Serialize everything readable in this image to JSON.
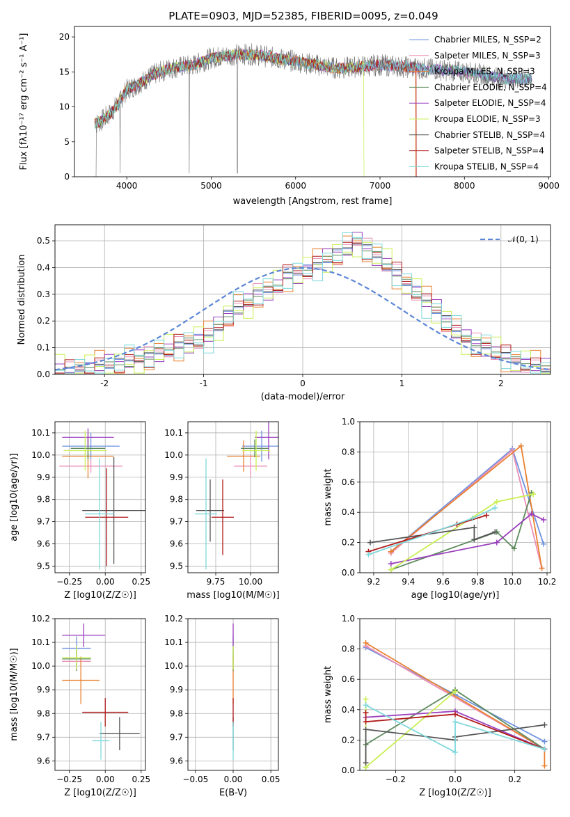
{
  "figure_title": "PLATE=0903, MJD=52385, FIBERID=0095, z=0.049",
  "colors": {
    "Chabrier MILES": "#6f93e0",
    "Salpeter MILES": "#ea8fb6",
    "Kroupa MILES": "#e9802f",
    "Chabrier ELODIE": "#5d8a5d",
    "Salpeter ELODIE": "#9a3fbd",
    "Kroupa ELODIE": "#c9ef53",
    "Chabrier STELIB": "#555555",
    "Salpeter STELIB": "#b01a1a",
    "Kroupa STELIB": "#7ed8dc",
    "normal": "#5b86d6"
  },
  "chart_data": [
    {
      "id": "spectrum",
      "type": "line",
      "xlabel": "wavelength [Angstrom, rest frame]",
      "ylabel": "Flux [fλ10⁻¹⁷ erg cm⁻² s⁻¹ A⁻¹]",
      "xlim": [
        3380,
        9020
      ],
      "ylim": [
        0,
        21.5
      ],
      "xticks": [
        4000,
        5000,
        6000,
        7000,
        8000,
        9000
      ],
      "yticks": [
        0,
        5,
        10,
        15,
        20
      ],
      "legend_position": "top-right",
      "legend": [
        "Chabrier MILES, N_SSP=2",
        "Salpeter MILES, N_SSP=3",
        "Kroupa MILES, N_SSP=3",
        "Chabrier ELODIE, N_SSP=4",
        "Salpeter ELODIE, N_SSP=4",
        "Kroupa ELODIE, N_SSP=3",
        "Chabrier STELIB, N_SSP=4",
        "Salpeter STELIB, N_SSP=4",
        "Kroupa STELIB, N_SSP=4"
      ],
      "continuum_x": [
        3620,
        3700,
        3800,
        3900,
        4000,
        4100,
        4300,
        4500,
        4800,
        5000,
        5300,
        5500,
        6000,
        6500,
        7000,
        7500,
        8000,
        8500,
        8800
      ],
      "continuum_y": [
        7.5,
        8.0,
        9.0,
        10.5,
        12.5,
        13.0,
        14.5,
        15.5,
        16.0,
        17.0,
        17.5,
        17.5,
        16.5,
        15.5,
        16.0,
        15.5,
        15.0,
        14.0,
        14.0
      ],
      "data_line": {
        "name": "data",
        "color": "#707070",
        "xrange": [
          3620,
          8800
        ]
      },
      "model_cutoffs_x": [
        8800,
        8800,
        7420,
        8800,
        8800,
        6810,
        8800,
        7430,
        8800
      ]
    },
    {
      "id": "residuals",
      "type": "step",
      "xlabel": "(data-model)/error",
      "ylabel": "Normed distribution",
      "xlim": [
        -2.5,
        2.5
      ],
      "ylim": [
        0,
        0.56
      ],
      "xticks": [
        -2,
        -1,
        0,
        1,
        2
      ],
      "yticks": [
        0.0,
        0.1,
        0.2,
        0.3,
        0.4,
        0.5
      ],
      "legend": [
        "𝒩(0, 1)"
      ],
      "legend_position": "top-right",
      "bin_width": 0.1,
      "bins_start": -2.5,
      "base_hist": [
        0.015,
        0.015,
        0.02,
        0.025,
        0.03,
        0.035,
        0.04,
        0.05,
        0.06,
        0.065,
        0.08,
        0.09,
        0.11,
        0.12,
        0.13,
        0.14,
        0.175,
        0.22,
        0.25,
        0.27,
        0.3,
        0.31,
        0.33,
        0.37,
        0.38,
        0.39,
        0.41,
        0.43,
        0.45,
        0.47,
        0.5,
        0.47,
        0.44,
        0.41,
        0.38,
        0.34,
        0.31,
        0.27,
        0.24,
        0.2,
        0.16,
        0.135,
        0.115,
        0.1,
        0.08,
        0.07,
        0.05,
        0.04,
        0.03,
        0.02
      ],
      "gaussian": {
        "mu": 0,
        "sigma": 1,
        "style": "dashed"
      }
    },
    {
      "id": "z_age",
      "type": "errorbar",
      "xlabel": "Z [log10(Z/Z☉)]",
      "ylabel": "age  [log10(age/yr)]",
      "xlim": [
        -0.35,
        0.28
      ],
      "ylim": [
        9.47,
        10.15
      ],
      "xticks": [
        -0.25,
        0.0,
        0.25
      ],
      "xtick_labels": [
        "−0.25",
        "0.00",
        "0.25"
      ],
      "yticks": [
        9.5,
        9.6,
        9.7,
        9.8,
        9.9,
        10.0,
        10.1
      ],
      "points": [
        {
          "model": "Chabrier MILES",
          "x": -0.1,
          "xerr": 0.2,
          "y": 10.04,
          "yerr": 0.06
        },
        {
          "model": "Salpeter MILES",
          "x": -0.1,
          "xerr": 0.22,
          "y": 9.95,
          "yerr": 0.03
        },
        {
          "model": "Kroupa MILES",
          "x": -0.12,
          "xerr": 0.18,
          "y": 9.995,
          "yerr": 0.1
        },
        {
          "model": "Chabrier ELODIE",
          "x": -0.12,
          "xerr": 0.12,
          "y": 10.03,
          "yerr": 0.05
        },
        {
          "model": "Salpeter ELODIE",
          "x": -0.12,
          "xerr": 0.18,
          "y": 10.08,
          "yerr": 0.04
        },
        {
          "model": "Kroupa ELODIE",
          "x": -0.14,
          "xerr": 0.15,
          "y": 10.02,
          "yerr": 0.09
        },
        {
          "model": "Chabrier STELIB",
          "x": 0.06,
          "xerr": 0.22,
          "y": 9.75,
          "yerr": 0.24
        },
        {
          "model": "Salpeter STELIB",
          "x": 0.01,
          "xerr": 0.15,
          "y": 9.72,
          "yerr": 0.22
        },
        {
          "model": "Kroupa STELIB",
          "x": -0.04,
          "xerr": 0.1,
          "y": 9.735,
          "yerr": 0.25
        }
      ]
    },
    {
      "id": "mass_age",
      "type": "errorbar",
      "xlabel": "mass [log10(M/M☉)]",
      "ylabel": "",
      "xlim": [
        9.55,
        10.2
      ],
      "ylim": [
        9.47,
        10.15
      ],
      "xticks": [
        9.75,
        10.0
      ],
      "xtick_labels": [
        "9.75",
        "10.00"
      ],
      "yticks": [
        9.5,
        9.6,
        9.7,
        9.8,
        9.9,
        10.0,
        10.1
      ],
      "points": [
        {
          "model": "Chabrier MILES",
          "x": 10.08,
          "xerr": 0.14,
          "y": 10.04,
          "yerr": 0.07
        },
        {
          "model": "Salpeter MILES",
          "x": 10.0,
          "xerr": 0.12,
          "y": 9.95,
          "yerr": 0.05
        },
        {
          "model": "Kroupa MILES",
          "x": 9.95,
          "xerr": 0.12,
          "y": 9.995,
          "yerr": 0.07
        },
        {
          "model": "Chabrier ELODIE",
          "x": 10.03,
          "xerr": 0.1,
          "y": 10.03,
          "yerr": 0.04
        },
        {
          "model": "Salpeter ELODIE",
          "x": 10.13,
          "xerr": 0.1,
          "y": 10.08,
          "yerr": 0.1
        },
        {
          "model": "Kroupa ELODIE",
          "x": 10.04,
          "xerr": 0.1,
          "y": 10.02,
          "yerr": 0.09
        },
        {
          "model": "Chabrier STELIB",
          "x": 9.71,
          "xerr": 0.1,
          "y": 9.75,
          "yerr": 0.14
        },
        {
          "model": "Salpeter STELIB",
          "x": 9.8,
          "xerr": 0.08,
          "y": 9.72,
          "yerr": 0.17
        },
        {
          "model": "Kroupa STELIB",
          "x": 9.68,
          "xerr": 0.08,
          "y": 9.735,
          "yerr": 0.25
        }
      ]
    },
    {
      "id": "age_weight",
      "type": "line",
      "xlabel": "age  [log10(age/yr)]",
      "ylabel": "mass weight",
      "xlim": [
        9.12,
        10.22
      ],
      "ylim": [
        0,
        1.0
      ],
      "xticks": [
        9.2,
        9.4,
        9.6,
        9.8,
        10.0,
        10.2
      ],
      "xtick_labels": [
        "9.2",
        "9.4",
        "9.6",
        "9.8",
        "10.0",
        "10.2"
      ],
      "yticks": [
        0.0,
        0.2,
        0.4,
        0.6,
        0.8,
        1.0
      ],
      "series": [
        {
          "model": "Chabrier MILES",
          "x": [
            9.3,
            10.0,
            10.18
          ],
          "y": [
            0.14,
            0.82,
            0.19
          ]
        },
        {
          "model": "Salpeter MILES",
          "x": [
            9.3,
            10.0,
            10.17
          ],
          "y": [
            0.13,
            0.81,
            0.03
          ]
        },
        {
          "model": "Kroupa MILES",
          "x": [
            9.3,
            10.05,
            10.17
          ],
          "y": [
            0.14,
            0.84,
            0.03
          ]
        },
        {
          "model": "Chabrier ELODIE",
          "x": [
            9.3,
            9.91,
            10.01,
            10.11
          ],
          "y": [
            0.02,
            0.27,
            0.16,
            0.53
          ]
        },
        {
          "model": "Salpeter ELODIE",
          "x": [
            9.3,
            9.91,
            10.11,
            10.18
          ],
          "y": [
            0.06,
            0.2,
            0.39,
            0.35
          ]
        },
        {
          "model": "Kroupa ELODIE",
          "x": [
            9.3,
            9.91,
            10.12
          ],
          "y": [
            0.02,
            0.47,
            0.52
          ]
        },
        {
          "model": "Chabrier STELIB",
          "x": [
            9.18,
            9.78,
            9.78,
            9.9
          ],
          "y": [
            0.2,
            0.3,
            0.22,
            0.27
          ]
        },
        {
          "model": "Salpeter STELIB",
          "x": [
            9.17,
            9.68,
            9.85
          ],
          "y": [
            0.14,
            0.32,
            0.38
          ]
        },
        {
          "model": "Kroupa STELIB",
          "x": [
            9.17,
            9.77,
            9.9
          ],
          "y": [
            0.12,
            0.36,
            0.43
          ]
        }
      ]
    },
    {
      "id": "z_mass",
      "type": "errorbar",
      "xlabel": "Z [log10(Z/Z☉)]",
      "ylabel": "mass [log10(M/M☉)]",
      "xlim": [
        -0.35,
        0.28
      ],
      "ylim": [
        9.56,
        10.2
      ],
      "xticks": [
        -0.25,
        0.0,
        0.25
      ],
      "xtick_labels": [
        "−0.25",
        "0.00",
        "0.25"
      ],
      "yticks": [
        9.6,
        9.7,
        9.8,
        9.9,
        10.0,
        10.1,
        10.2
      ],
      "points": [
        {
          "model": "Chabrier MILES",
          "x": -0.2,
          "xerr": 0.1,
          "y": 10.075,
          "yerr": 0.05
        },
        {
          "model": "Salpeter MILES",
          "x": -0.2,
          "xerr": 0.1,
          "y": 10.02,
          "yerr": 0.04
        },
        {
          "model": "Kroupa MILES",
          "x": -0.17,
          "xerr": 0.13,
          "y": 9.94,
          "yerr": 0.1
        },
        {
          "model": "Chabrier ELODIE",
          "x": -0.2,
          "xerr": 0.1,
          "y": 10.03,
          "yerr": 0.05
        },
        {
          "model": "Salpeter ELODIE",
          "x": -0.15,
          "xerr": 0.15,
          "y": 10.13,
          "yerr": 0.05
        },
        {
          "model": "Kroupa ELODIE",
          "x": -0.2,
          "xerr": 0.1,
          "y": 10.035,
          "yerr": 0.05
        },
        {
          "model": "Chabrier STELIB",
          "x": 0.1,
          "xerr": 0.14,
          "y": 9.715,
          "yerr": 0.07
        },
        {
          "model": "Salpeter STELIB",
          "x": 0.0,
          "xerr": 0.16,
          "y": 9.805,
          "yerr": 0.06
        },
        {
          "model": "Kroupa STELIB",
          "x": -0.03,
          "xerr": 0.06,
          "y": 9.685,
          "yerr": 0.08
        }
      ]
    },
    {
      "id": "ebv_mass",
      "type": "errorbar",
      "xlabel": "E(B-V)",
      "ylabel": "",
      "xlim": [
        -0.06,
        0.06
      ],
      "ylim": [
        9.56,
        10.2
      ],
      "xticks": [
        -0.05,
        0.0,
        0.05
      ],
      "xtick_labels": [
        "−0.05",
        "0.00",
        "0.05"
      ],
      "yticks": [
        9.6,
        9.7,
        9.8,
        9.9,
        10.0,
        10.1,
        10.2
      ],
      "points": [
        {
          "model": "Chabrier MILES",
          "x": 0.0,
          "xerr": 0.0,
          "y": 10.075,
          "yerr": 0.05
        },
        {
          "model": "Salpeter MILES",
          "x": 0.0,
          "xerr": 0.0,
          "y": 10.02,
          "yerr": 0.04
        },
        {
          "model": "Kroupa MILES",
          "x": 0.0,
          "xerr": 0.0,
          "y": 9.94,
          "yerr": 0.1
        },
        {
          "model": "Chabrier ELODIE",
          "x": 0.0,
          "xerr": 0.0,
          "y": 10.03,
          "yerr": 0.05
        },
        {
          "model": "Salpeter ELODIE",
          "x": 0.0,
          "xerr": 0.0,
          "y": 10.13,
          "yerr": 0.05
        },
        {
          "model": "Kroupa ELODIE",
          "x": 0.0,
          "xerr": 0.0,
          "y": 10.035,
          "yerr": 0.05
        },
        {
          "model": "Chabrier STELIB",
          "x": 0.0,
          "xerr": 0.0,
          "y": 9.715,
          "yerr": 0.07
        },
        {
          "model": "Salpeter STELIB",
          "x": 0.0,
          "xerr": 0.0,
          "y": 9.805,
          "yerr": 0.06
        },
        {
          "model": "Kroupa STELIB",
          "x": 0.0,
          "xerr": 0.0,
          "y": 9.685,
          "yerr": 0.08
        }
      ]
    },
    {
      "id": "z_weight",
      "type": "line",
      "xlabel": "Z [log10(Z/Z☉)]",
      "ylabel": "mass weight",
      "xlim": [
        -0.32,
        0.32
      ],
      "ylim": [
        0,
        1.0
      ],
      "xticks": [
        -0.2,
        0.0,
        0.2
      ],
      "xtick_labels": [
        "−0.2",
        "0.0",
        "0.2"
      ],
      "yticks": [
        0.0,
        0.2,
        0.4,
        0.6,
        0.8,
        1.0
      ],
      "series": [
        {
          "model": "Chabrier MILES",
          "x": [
            -0.3,
            0.0,
            0.3
          ],
          "y": [
            0.81,
            0.5,
            0.19
          ]
        },
        {
          "model": "Salpeter MILES",
          "x": [
            -0.3,
            0.3
          ],
          "y": [
            0.82,
            0.14
          ]
        },
        {
          "model": "Kroupa MILES",
          "x": [
            -0.3,
            0.3,
            0.3
          ],
          "y": [
            0.84,
            0.14,
            0.03
          ]
        },
        {
          "model": "Chabrier ELODIE",
          "x": [
            -0.3,
            -0.3,
            0.0,
            0.0,
            0.3
          ],
          "y": [
            0.02,
            0.17,
            0.53,
            0.53,
            0.14
          ]
        },
        {
          "model": "Salpeter ELODIE",
          "x": [
            -0.3,
            0.0,
            0.3
          ],
          "y": [
            0.35,
            0.39,
            0.14
          ]
        },
        {
          "model": "Kroupa ELODIE",
          "x": [
            -0.3,
            -0.3,
            0.0
          ],
          "y": [
            0.47,
            0.02,
            0.52
          ]
        },
        {
          "model": "Chabrier STELIB",
          "x": [
            -0.3,
            -0.3,
            0.0,
            0.0,
            0.3
          ],
          "y": [
            0.05,
            0.27,
            0.2,
            0.22,
            0.3
          ]
        },
        {
          "model": "Salpeter STELIB",
          "x": [
            -0.3,
            -0.3,
            0.0,
            0.3
          ],
          "y": [
            0.38,
            0.32,
            0.37,
            0.14
          ]
        },
        {
          "model": "Kroupa STELIB",
          "x": [
            -0.3,
            0.0,
            0.0,
            0.3
          ],
          "y": [
            0.43,
            0.12,
            0.32,
            0.14
          ]
        }
      ]
    }
  ]
}
